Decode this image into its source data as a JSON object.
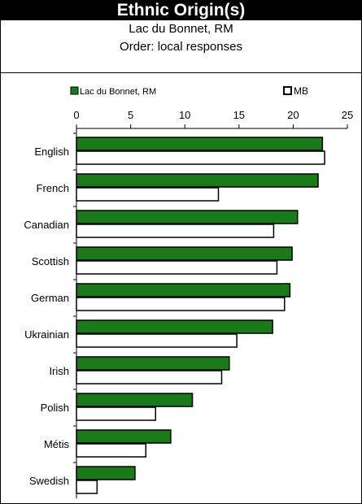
{
  "header": {
    "title": "Ethnic Origin(s)",
    "subtitle_line1": "Lac du Bonnet, RM",
    "subtitle_line2": "Order: local responses"
  },
  "colors": {
    "local_series": "#1a7a1a",
    "mb_series": "#ffffff",
    "outline": "#000000"
  },
  "chart_data": {
    "type": "bar",
    "orientation": "horizontal",
    "categories": [
      "English",
      "French",
      "Canadian",
      "Scottish",
      "German",
      "Ukrainian",
      "Irish",
      "Polish",
      "Métis",
      "Swedish"
    ],
    "series": [
      {
        "name": "Lac du Bonnet, RM",
        "values": [
          22.7,
          22.3,
          20.4,
          19.9,
          19.7,
          18.1,
          14.1,
          10.7,
          8.7,
          5.4
        ]
      },
      {
        "name": "MB",
        "values": [
          22.9,
          13.1,
          18.2,
          18.5,
          19.2,
          14.8,
          13.4,
          7.3,
          6.4,
          1.9
        ]
      }
    ],
    "xlim": [
      0,
      25
    ],
    "xticks": [
      "0",
      "5",
      "10",
      "15",
      "20",
      "25"
    ],
    "legend_position": "top",
    "grid": false
  }
}
